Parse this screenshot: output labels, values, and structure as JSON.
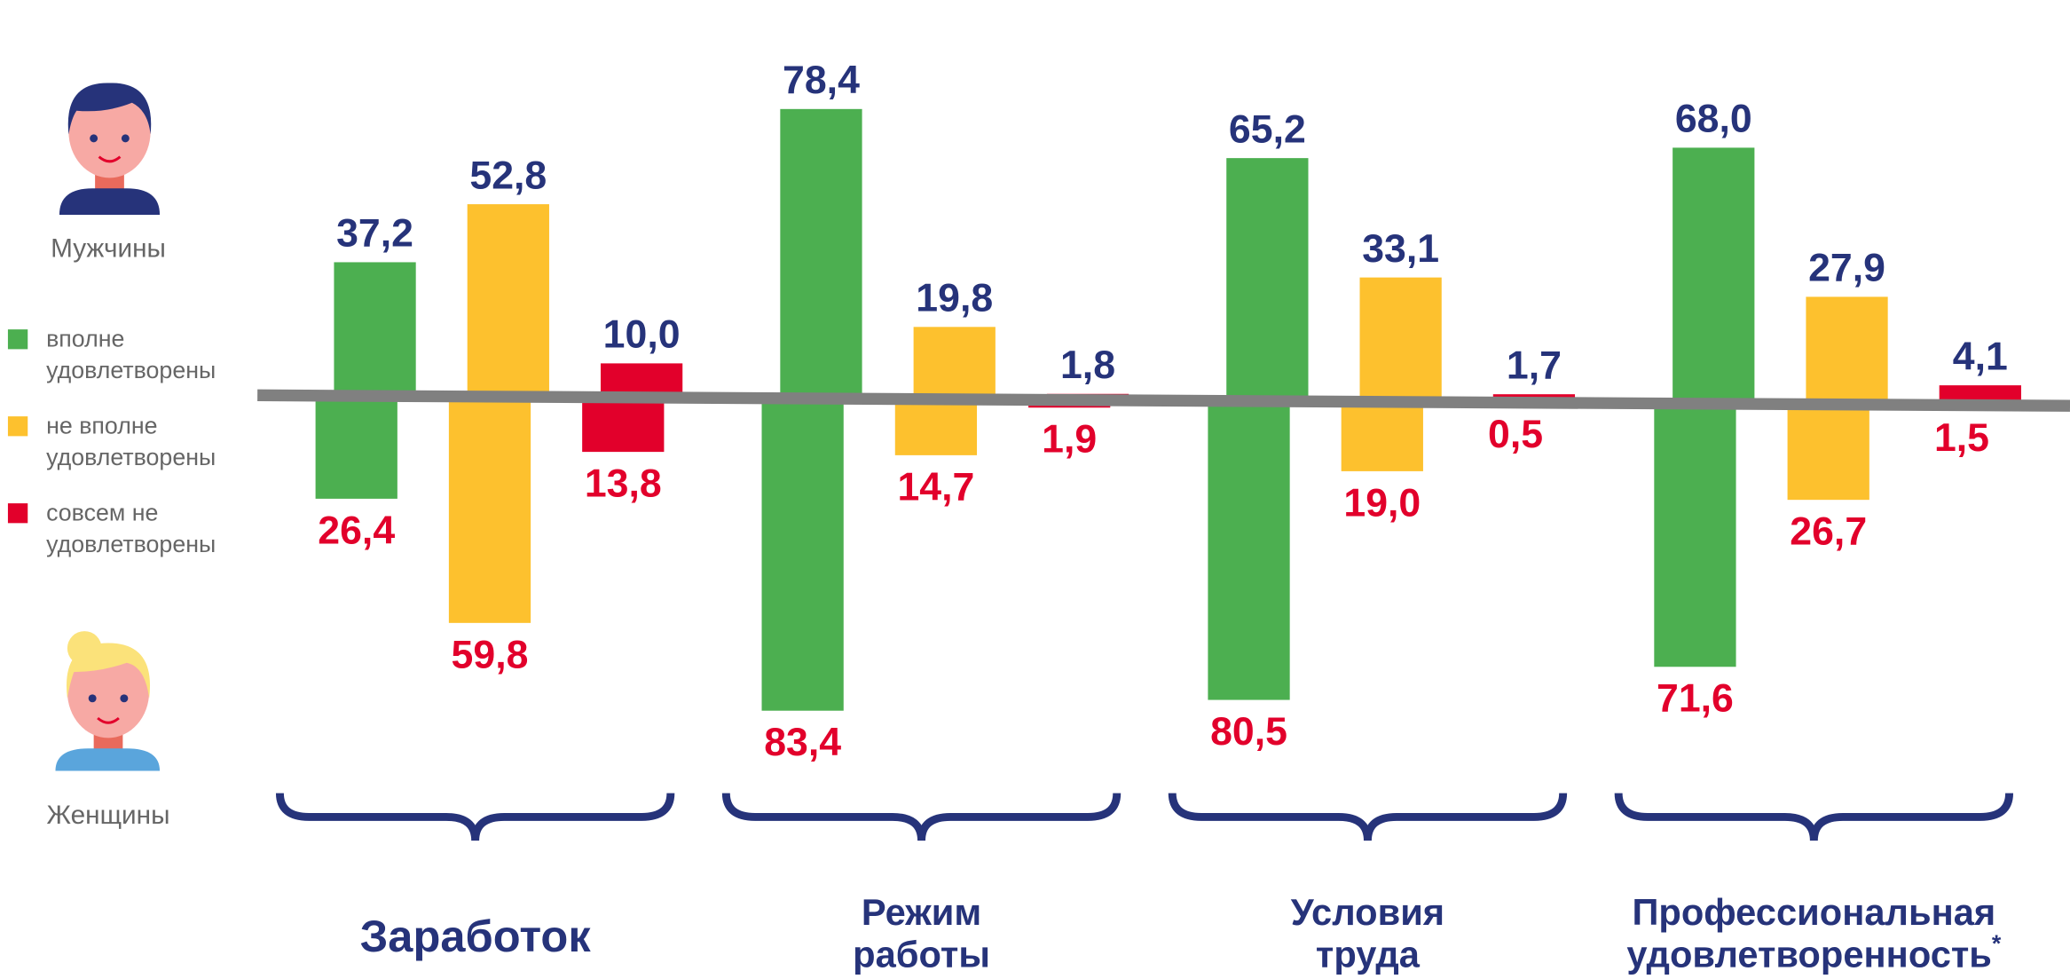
{
  "chart_data": {
    "type": "bar",
    "groups": [
      "Мужчины",
      "Женщины"
    ],
    "categories": [
      "Заработок",
      "Режим работы",
      "Условия труда",
      "Профессиональная удовлетворенность*"
    ],
    "ylim": [
      -90,
      90
    ],
    "series": [
      {
        "name": "вполне удовлетворены",
        "color": "#4caf50",
        "values": [
          37.2,
          78.4,
          65.2,
          68.0
        ],
        "value_labels": [
          "37,2",
          "78,4",
          "65,2",
          "68,0"
        ],
        "values_women": [
          26.4,
          83.4,
          80.5,
          71.6
        ],
        "value_labels_women": [
          "26,4",
          "83,4",
          "80,5",
          "71,6"
        ]
      },
      {
        "name": "не вполне удовлетворены",
        "color": "#fdc12e",
        "values": [
          52.8,
          19.8,
          33.1,
          27.9
        ],
        "value_labels": [
          "52,8",
          "19,8",
          "33,1",
          "27,9"
        ],
        "values_women": [
          59.8,
          14.7,
          19.0,
          26.7
        ],
        "value_labels_women": [
          "59,8",
          "14,7",
          "19,0",
          "26,7"
        ]
      },
      {
        "name": "совсем не удовлетворены",
        "color": "#e2002b",
        "values": [
          10.0,
          1.8,
          1.7,
          4.1
        ],
        "value_labels": [
          "10,0",
          "1,8",
          "1,7",
          "4,1"
        ],
        "values_women": [
          13.8,
          1.9,
          0.5,
          1.5
        ],
        "value_labels_women": [
          "13,8",
          "1,9",
          "0,5",
          "1,5"
        ]
      }
    ]
  }
}
